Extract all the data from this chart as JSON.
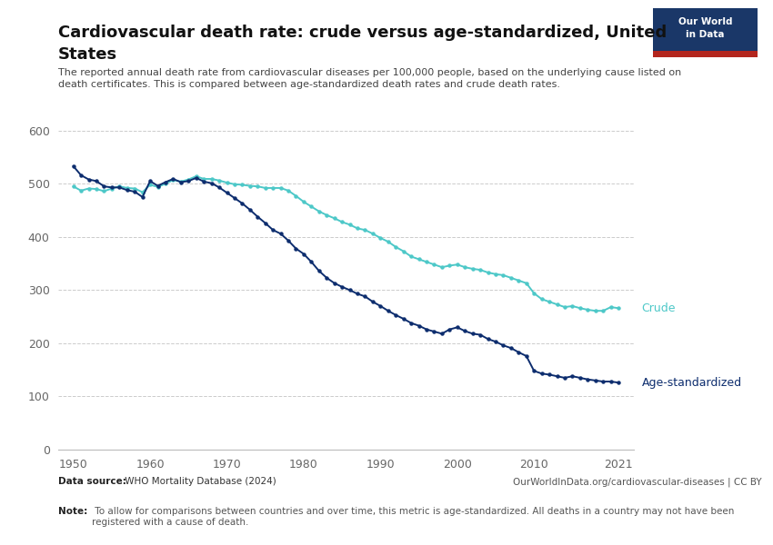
{
  "title_line1": "Cardiovascular death rate: crude versus age-standardized, United",
  "title_line2": "States",
  "subtitle": "The reported annual death rate from cardiovascular diseases per 100,000 people, based on the underlying cause listed on\ndeath certificates. This is compared between age-standardized death rates and crude death rates.",
  "datasource_bold": "Data source:",
  "datasource_rest": " WHO Mortality Database (2024)",
  "credit": "OurWorldInData.org/cardiovascular-diseases | CC BY",
  "note_bold": "Note:",
  "note_rest": " To allow for comparisons between countries and over time, this metric is age-standardized. All deaths in a country may not have been\nregistered with a cause of death.",
  "crude_color": "#4dc8c8",
  "agestd_color": "#0d2d6e",
  "background_color": "#ffffff",
  "text_color": "#333333",
  "grid_color": "#cccccc",
  "axis_color": "#bbbbbb",
  "tick_color": "#666666",
  "years": [
    1950,
    1951,
    1952,
    1953,
    1954,
    1955,
    1956,
    1957,
    1958,
    1959,
    1960,
    1961,
    1962,
    1963,
    1964,
    1965,
    1966,
    1967,
    1968,
    1969,
    1970,
    1971,
    1972,
    1973,
    1974,
    1975,
    1976,
    1977,
    1978,
    1979,
    1980,
    1981,
    1982,
    1983,
    1984,
    1985,
    1986,
    1987,
    1988,
    1989,
    1990,
    1991,
    1992,
    1993,
    1994,
    1995,
    1996,
    1997,
    1998,
    1999,
    2000,
    2001,
    2002,
    2003,
    2004,
    2005,
    2006,
    2007,
    2008,
    2009,
    2010,
    2011,
    2012,
    2013,
    2014,
    2015,
    2016,
    2017,
    2018,
    2019,
    2020,
    2021
  ],
  "crude": [
    495,
    487,
    491,
    490,
    486,
    491,
    495,
    492,
    491,
    484,
    498,
    494,
    500,
    507,
    504,
    508,
    514,
    509,
    509,
    506,
    502,
    499,
    498,
    496,
    495,
    492,
    492,
    492,
    487,
    477,
    466,
    457,
    448,
    441,
    435,
    428,
    423,
    416,
    413,
    406,
    398,
    391,
    381,
    373,
    363,
    358,
    353,
    348,
    343,
    346,
    348,
    343,
    340,
    338,
    333,
    330,
    328,
    323,
    318,
    313,
    294,
    283,
    278,
    273,
    268,
    270,
    266,
    263,
    261,
    261,
    268,
    266
  ],
  "agestd": [
    533,
    516,
    508,
    505,
    495,
    493,
    493,
    488,
    485,
    475,
    505,
    496,
    503,
    509,
    503,
    505,
    511,
    504,
    501,
    493,
    483,
    473,
    463,
    451,
    438,
    426,
    413,
    406,
    393,
    378,
    368,
    353,
    336,
    323,
    313,
    306,
    300,
    293,
    288,
    278,
    270,
    261,
    253,
    246,
    238,
    233,
    226,
    222,
    218,
    226,
    230,
    223,
    218,
    216,
    208,
    203,
    196,
    191,
    183,
    176,
    148,
    143,
    141,
    138,
    135,
    138,
    135,
    132,
    130,
    128,
    128,
    126
  ],
  "xlim": [
    1948,
    2023
  ],
  "ylim": [
    0,
    620
  ],
  "yticks": [
    0,
    100,
    200,
    300,
    400,
    500,
    600
  ],
  "xticks": [
    1950,
    1960,
    1970,
    1980,
    1990,
    2000,
    2010,
    2021
  ],
  "owid_navy": "#1a3768",
  "owid_red": "#b3261e",
  "crude_label": "Crude",
  "agestd_label": "Age-standardized"
}
